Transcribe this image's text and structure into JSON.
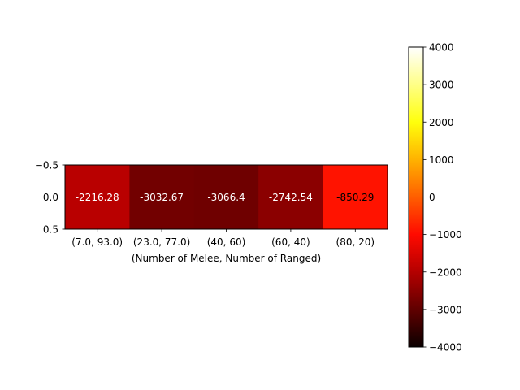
{
  "chart_data": {
    "type": "heatmap",
    "title": "",
    "xlabel": "(Number of Melee, Number of Ranged)",
    "ylabel": "",
    "categories": [
      "(7.0, 93.0)",
      "(23.0, 77.0)",
      "(40, 60)",
      "(60, 40)",
      "(80, 20)"
    ],
    "values": [
      -2216.28,
      -3032.67,
      -3066.4,
      -2742.54,
      -850.29
    ],
    "value_labels": [
      "-2216.28",
      "-3032.67",
      "-3066.4",
      "-2742.54",
      "-850.29"
    ],
    "y_ticks": [
      "−0.5",
      "0.0",
      "0.5"
    ],
    "colormap": "hot",
    "vmin": -4000,
    "vmax": 4000,
    "colorbar_ticks": [
      4000,
      3000,
      2000,
      1000,
      0,
      -1000,
      -2000,
      -3000,
      -4000
    ],
    "colorbar_tick_labels": [
      "4000",
      "3000",
      "2000",
      "1000",
      "0",
      "−1000",
      "−2000",
      "−3000",
      "−4000"
    ]
  }
}
